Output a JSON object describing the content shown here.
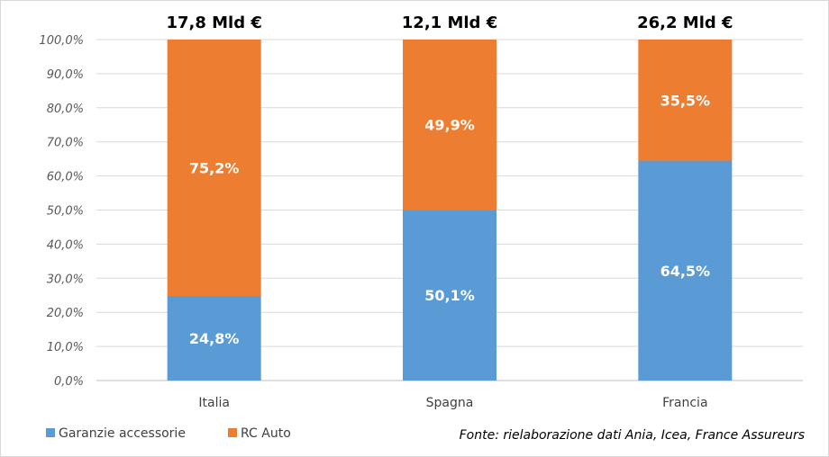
{
  "chart_data": {
    "type": "bar",
    "stacked": true,
    "categories": [
      "Italia",
      "Spagna",
      "Francia"
    ],
    "totals": [
      "17,8 Mld €",
      "12,1 Mld €",
      "26,2 Mld €"
    ],
    "series": [
      {
        "name": "Garanzie accessorie",
        "values": [
          24.8,
          50.1,
          64.5
        ],
        "labels": [
          "24,8%",
          "50,1%",
          "64,5%"
        ],
        "color": "#5b9bd5"
      },
      {
        "name": "RC Auto",
        "values": [
          75.2,
          49.9,
          35.5
        ],
        "labels": [
          "75,2%",
          "49,9%",
          "35,5%"
        ],
        "color": "#ed7d31"
      }
    ],
    "ylim": [
      0,
      100
    ],
    "yticks": [
      "0,0%",
      "10,0%",
      "20,0%",
      "30,0%",
      "40,0%",
      "50,0%",
      "60,0%",
      "70,0%",
      "80,0%",
      "90,0%",
      "100,0%"
    ],
    "grid": true,
    "legend_position": "bottom-left",
    "source": "Fonte: rielaborazione dati Ania, Icea, France Assureurs"
  }
}
